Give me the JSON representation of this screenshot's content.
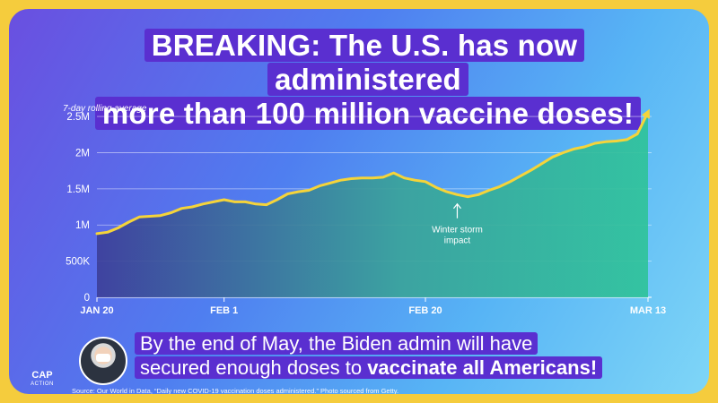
{
  "headline": {
    "keyword": "BREAKING:",
    "line1": " The U.S. has now administered",
    "line2": "more than 100 million vaccine doses!"
  },
  "caption": {
    "line1": "By the end of May, the Biden admin will have",
    "line2_plain": "secured enough doses to ",
    "line2_bold": "vaccinate all Americans!"
  },
  "source": "Source: Our World in Data, “Daily new COVID-19 vaccination doses administered.” Photo sourced from Getty.",
  "logo": {
    "big": "CAP",
    "small": "ACTION"
  },
  "colors": {
    "line": "#f5d43a",
    "area_left": "#3d3f9a",
    "area_right": "#2fc39a",
    "highlight": "#5a2fd0",
    "border": "#f5cc3d"
  },
  "chart_data": {
    "type": "area",
    "ylabel": "7-day rolling average",
    "xlabel": "",
    "title": "",
    "ylim": [
      0,
      2600000
    ],
    "y_ticks": [
      {
        "value": 0,
        "label": "0"
      },
      {
        "value": 500000,
        "label": "500K"
      },
      {
        "value": 1000000,
        "label": "1M"
      },
      {
        "value": 1500000,
        "label": "1.5M"
      },
      {
        "value": 2000000,
        "label": "2M"
      },
      {
        "value": 2500000,
        "label": "2.5M"
      }
    ],
    "x_range": [
      "2021-01-20",
      "2021-03-13"
    ],
    "x_ticks": [
      {
        "date": "2021-01-20",
        "label": "JAN 20"
      },
      {
        "date": "2021-02-01",
        "label": "FEB 1"
      },
      {
        "date": "2021-02-20",
        "label": "FEB 20"
      },
      {
        "date": "2021-03-13",
        "label": "MAR 13"
      }
    ],
    "grid": true,
    "series": [
      {
        "x": [
          "2021-01-20",
          "2021-01-21",
          "2021-01-22",
          "2021-01-23",
          "2021-01-24",
          "2021-01-25",
          "2021-01-26",
          "2021-01-27",
          "2021-01-28",
          "2021-01-29",
          "2021-01-30",
          "2021-01-31",
          "2021-02-01",
          "2021-02-02",
          "2021-02-03",
          "2021-02-04",
          "2021-02-05",
          "2021-02-06",
          "2021-02-07",
          "2021-02-08",
          "2021-02-09",
          "2021-02-10",
          "2021-02-11",
          "2021-02-12",
          "2021-02-13",
          "2021-02-14",
          "2021-02-15",
          "2021-02-16",
          "2021-02-17",
          "2021-02-18",
          "2021-02-19",
          "2021-02-20",
          "2021-02-21",
          "2021-02-22",
          "2021-02-23",
          "2021-02-24",
          "2021-02-25",
          "2021-02-26",
          "2021-02-27",
          "2021-02-28",
          "2021-03-01",
          "2021-03-02",
          "2021-03-03",
          "2021-03-04",
          "2021-03-05",
          "2021-03-06",
          "2021-03-07",
          "2021-03-08",
          "2021-03-09",
          "2021-03-10",
          "2021-03-11",
          "2021-03-12",
          "2021-03-13"
        ],
        "values": [
          880000,
          900000,
          960000,
          1040000,
          1110000,
          1120000,
          1130000,
          1170000,
          1230000,
          1250000,
          1290000,
          1320000,
          1350000,
          1320000,
          1320000,
          1290000,
          1280000,
          1350000,
          1430000,
          1460000,
          1480000,
          1540000,
          1580000,
          1620000,
          1640000,
          1650000,
          1650000,
          1660000,
          1720000,
          1650000,
          1620000,
          1600000,
          1520000,
          1460000,
          1420000,
          1390000,
          1420000,
          1480000,
          1530000,
          1600000,
          1680000,
          1760000,
          1850000,
          1940000,
          2000000,
          2050000,
          2080000,
          2130000,
          2150000,
          2160000,
          2180000,
          2260000,
          2560000
        ]
      }
    ],
    "annotations": [
      {
        "text_line1": "Winter storm",
        "text_line2": "impact",
        "x": "2021-02-23",
        "y": 1390000
      }
    ]
  }
}
